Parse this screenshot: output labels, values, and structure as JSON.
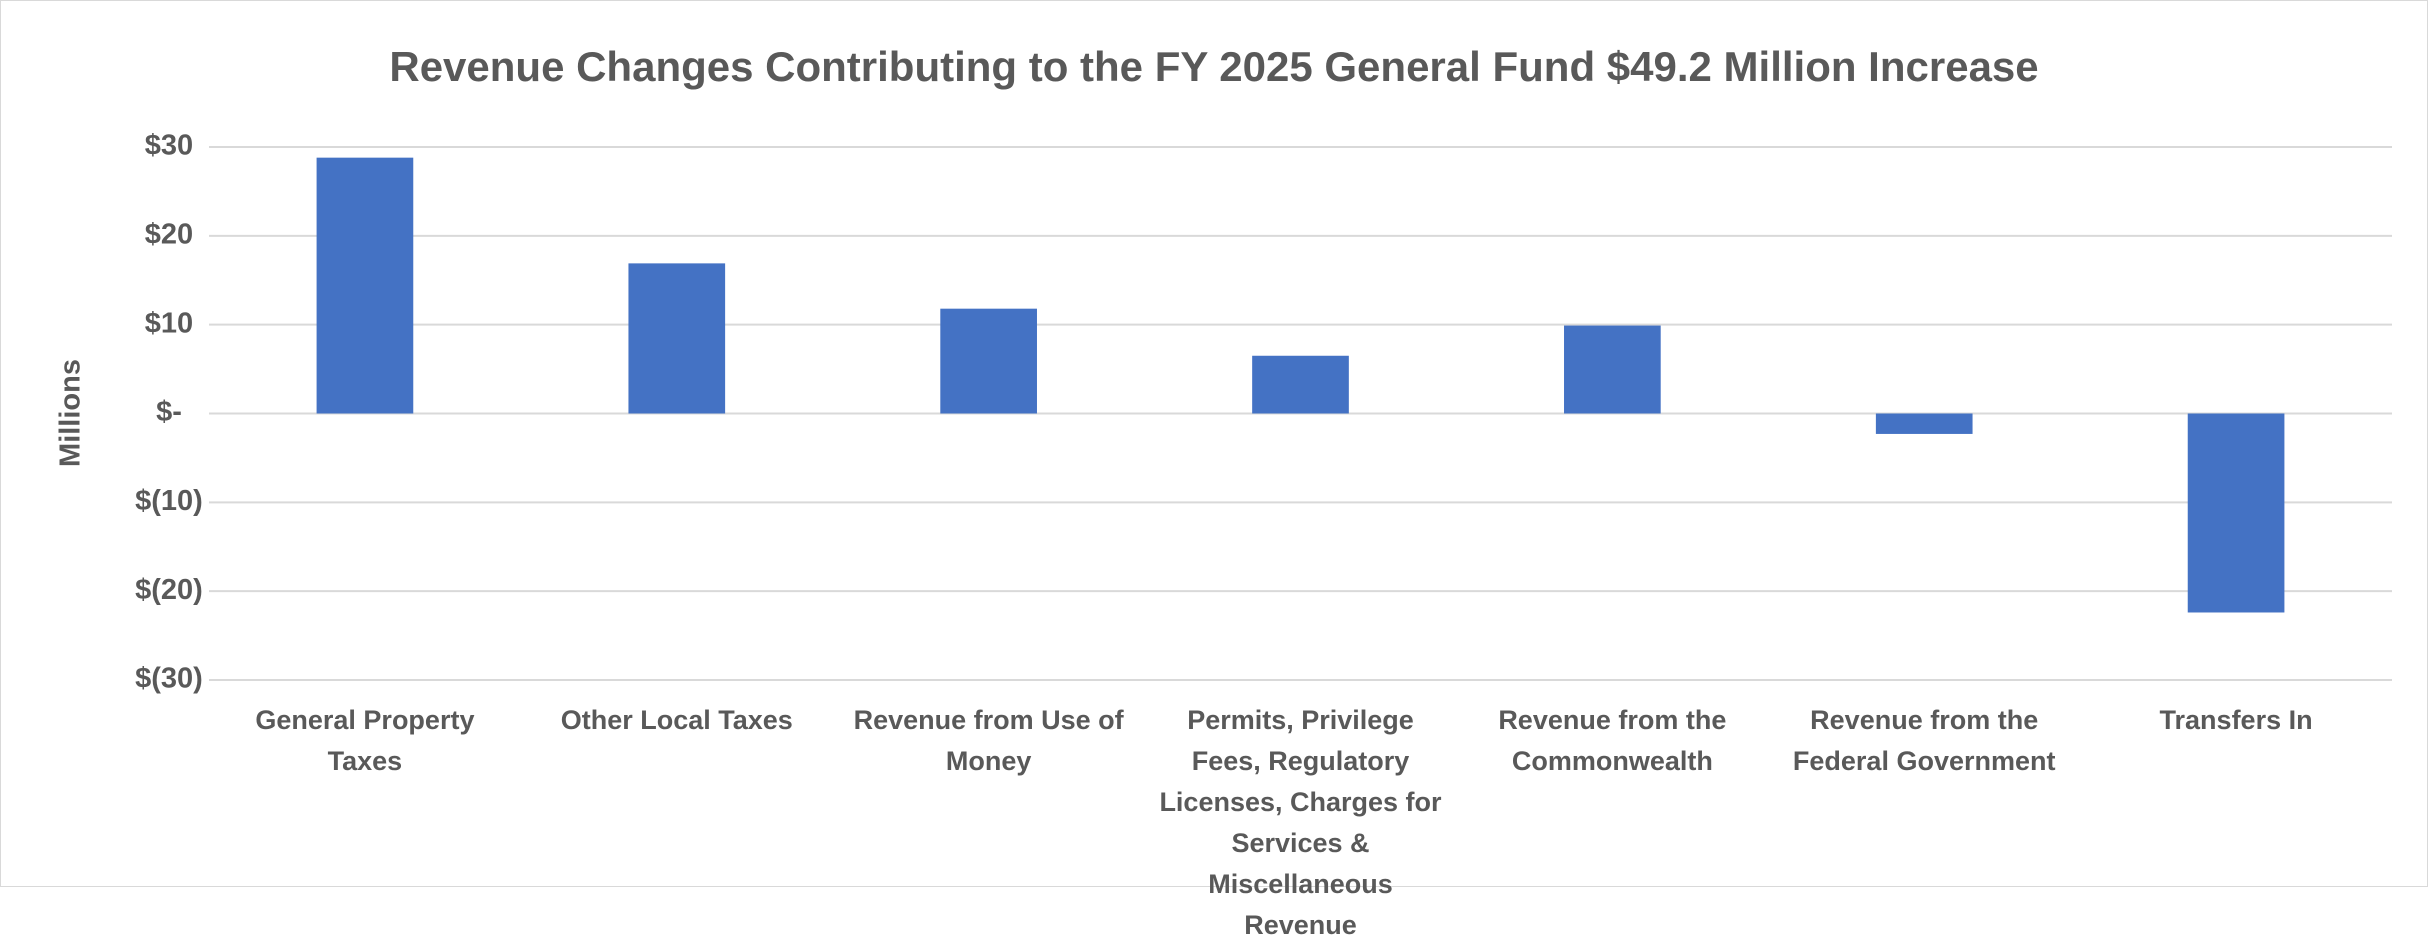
{
  "chart_data": {
    "type": "bar",
    "title": "Revenue Changes Contributing to the FY 2025 General Fund $49.2 Million Increase",
    "y_label": "Millions",
    "categories": [
      "General Property Taxes",
      "Other Local Taxes",
      "Revenue from Use of Money",
      "Permits, Privilege Fees, Regulatory Licenses, Charges for Services & Miscellaneous Revenue",
      "Revenue from the Commonwealth",
      "Revenue from the Federal Government",
      "Transfers In"
    ],
    "values": [
      28.8,
      16.9,
      11.8,
      6.5,
      9.9,
      -2.3,
      -22.4
    ],
    "color": "#4472c4",
    "ylim": [
      -30,
      30
    ],
    "yticks": [
      {
        "value": 30,
        "label": "$30"
      },
      {
        "value": 20,
        "label": "$20"
      },
      {
        "value": 10,
        "label": "$10"
      },
      {
        "value": 0,
        "label": "$-"
      },
      {
        "value": -10,
        "label": "$(10)"
      },
      {
        "value": -20,
        "label": "$(20)"
      },
      {
        "value": -30,
        "label": "$(30)"
      }
    ],
    "grid": true
  }
}
